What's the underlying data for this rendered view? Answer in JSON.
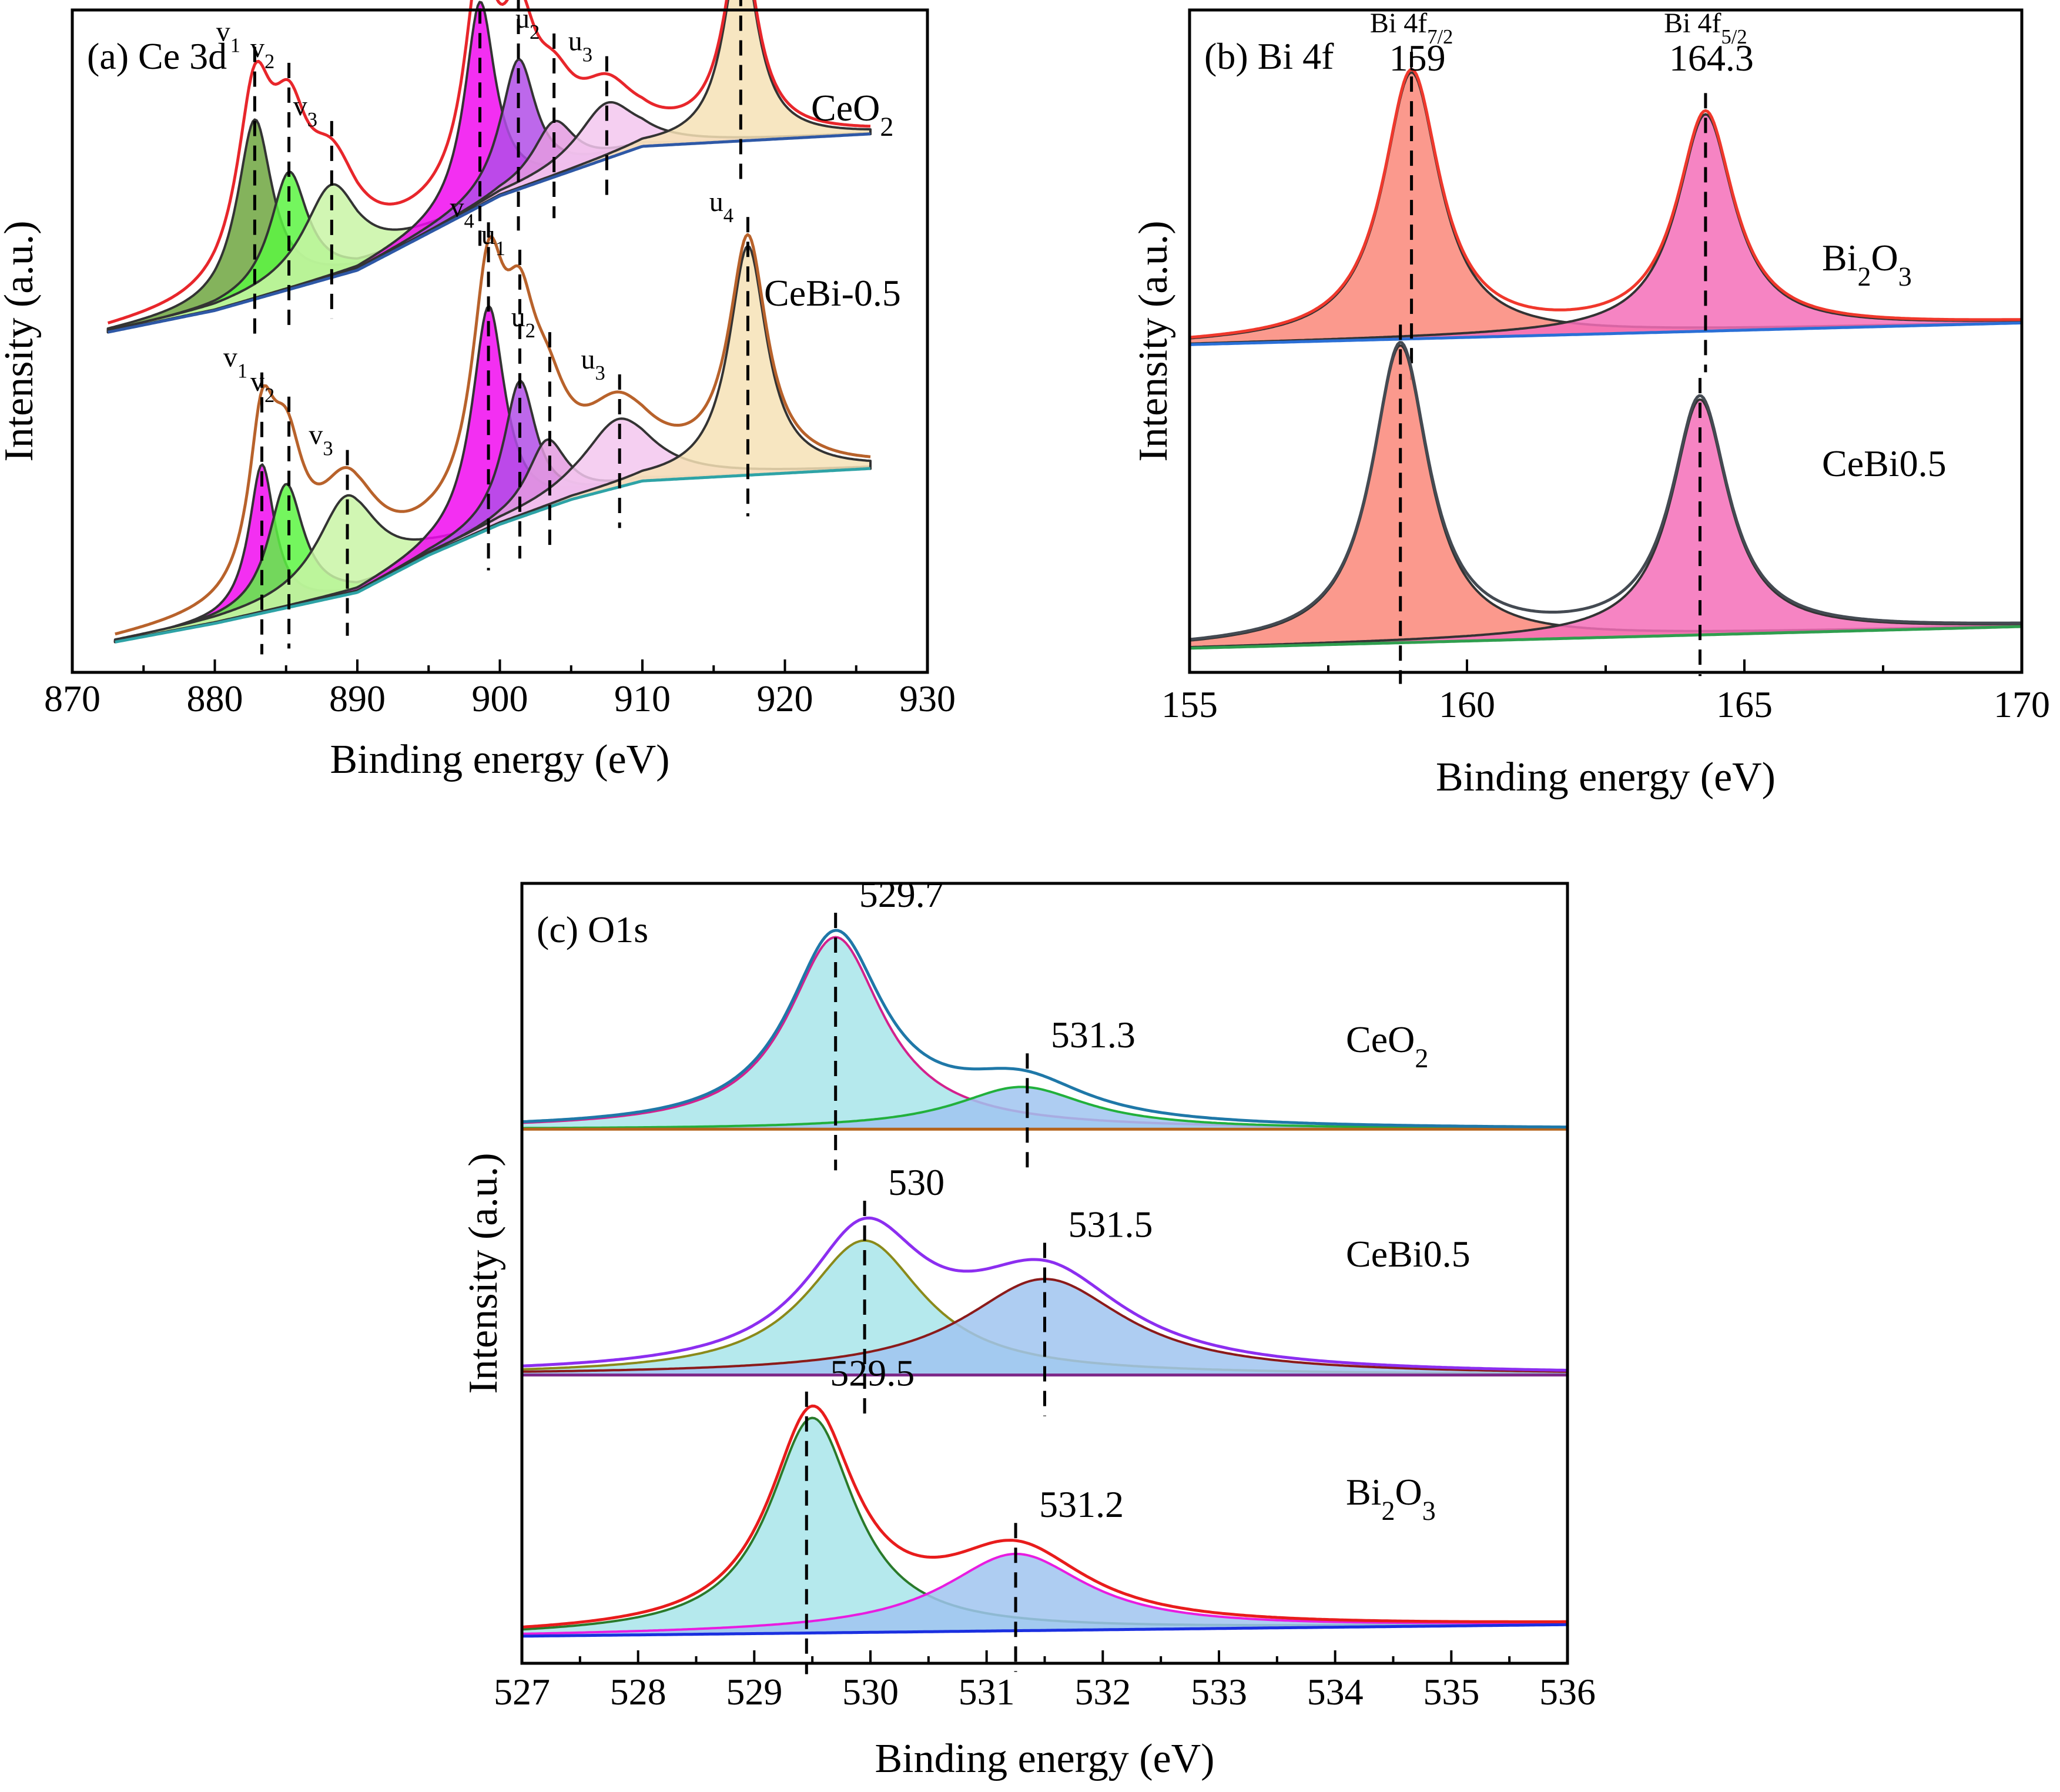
{
  "chart_data": [
    {
      "type": "line",
      "panel": "a",
      "title": "(a)  Ce 3d",
      "xlabel": "Binding energy (eV)",
      "ylabel": "Intensity (a.u.)",
      "xlim": [
        870,
        930
      ],
      "ylim": [
        0,
        10
      ],
      "xticks": [
        870,
        880,
        890,
        900,
        910,
        920,
        930
      ],
      "series": [
        {
          "name": "CeO2",
          "label_text": "CeO",
          "label_sub": "2",
          "offset": 5.3,
          "line_color": "#e8262b",
          "background_color": "#2e58a6",
          "background": [
            [
              872.5,
              0
            ],
            [
              880,
              0.35
            ],
            [
              890,
              1.0
            ],
            [
              895,
              1.6
            ],
            [
              900,
              2.2
            ],
            [
              905,
              2.6
            ],
            [
              910,
              3.0
            ],
            [
              926,
              3.2
            ]
          ],
          "peaks": [
            {
              "label": "v1",
              "center": 882.8,
              "height": 2.9,
              "width": 1.5,
              "fill": "#6fa640"
            },
            {
              "label": "v2",
              "center": 885.2,
              "height": 1.9,
              "width": 1.6,
              "fill": "#5cf542"
            },
            {
              "label": "v3",
              "center": 888.2,
              "height": 1.5,
              "width": 2.4,
              "fill": "#c9f5a6"
            },
            {
              "label": "v4",
              "center": 898.6,
              "height": 3.3,
              "width": 1.3,
              "fill": "#f10bf0"
            },
            {
              "label": "u1",
              "center": 901.3,
              "height": 2.1,
              "width": 1.5,
              "fill": "#b24de8"
            },
            {
              "label": "u2",
              "center": 903.8,
              "height": 0.9,
              "width": 1.8,
              "fill": "#e49be0"
            },
            {
              "label": "u3",
              "center": 907.5,
              "height": 0.9,
              "width": 2.5,
              "fill": "#f3c7ef"
            },
            {
              "label": "u4",
              "center": 916.9,
              "height": 3.2,
              "width": 1.4,
              "fill": "#f6e2b6"
            }
          ],
          "markers": [
            882.8,
            885.2,
            888.2,
            898.6,
            901.3,
            903.8,
            907.5,
            916.9
          ]
        },
        {
          "name": "CeBi-0.5",
          "label_text": "CeBi-0.5",
          "label_sub": "",
          "offset": 0.3,
          "line_color": "#b8622b",
          "background_color": "#2ea3a6",
          "background": [
            [
              873,
              0
            ],
            [
              880,
              0.3
            ],
            [
              890,
              0.8
            ],
            [
              895,
              1.4
            ],
            [
              900,
              1.9
            ],
            [
              905,
              2.3
            ],
            [
              910,
              2.6
            ],
            [
              926,
              2.8
            ]
          ],
          "peaks": [
            {
              "label": "v1",
              "center": 883.3,
              "height": 2.4,
              "width": 1.1,
              "fill": "#f10bf0"
            },
            {
              "label": "v2",
              "center": 885.0,
              "height": 2.0,
              "width": 1.5,
              "fill": "#5cf542"
            },
            {
              "label": "v3",
              "center": 889.3,
              "height": 1.6,
              "width": 2.6,
              "fill": "#c9f5a6"
            },
            {
              "label": "v4",
              "center": 899.2,
              "height": 3.6,
              "width": 1.4,
              "fill": "#f10bf0"
            },
            {
              "label": "u1",
              "center": 901.4,
              "height": 2.2,
              "width": 1.4,
              "fill": "#b24de8"
            },
            {
              "label": "u2",
              "center": 903.3,
              "height": 1.1,
              "width": 1.7,
              "fill": "#e49be0"
            },
            {
              "label": "u3",
              "center": 908.3,
              "height": 1.1,
              "width": 3.0,
              "fill": "#f3c7ef"
            },
            {
              "label": "u4",
              "center": 917.4,
              "height": 3.7,
              "width": 1.6,
              "fill": "#f6e2b6"
            }
          ],
          "markers": [
            883.3,
            885.2,
            889.3,
            899.2,
            901.4,
            903.5,
            908.4,
            917.4
          ]
        }
      ]
    },
    {
      "type": "line",
      "panel": "b",
      "title": "(b) Bi 4f",
      "xlabel": "Binding energy (eV)",
      "ylabel": "Intensity (a.u.)",
      "xlim": [
        155,
        170
      ],
      "ylim": [
        0,
        10
      ],
      "xticks": [
        155,
        160,
        165,
        170
      ],
      "peak_labels": [
        {
          "line1": "Bi 4f",
          "sub": "7/2",
          "value": "159",
          "x": 159.0
        },
        {
          "line1": "Bi 4f",
          "sub": "5/2",
          "value": "164.3",
          "x": 164.3
        }
      ],
      "series": [
        {
          "name": "Bi2O3",
          "label_text": "Bi",
          "label_sub": "2",
          "label_text2": "O",
          "label_sub2": "3",
          "offset": 5.1,
          "line_color": "#f0382c",
          "background_color": "#2a6fd6",
          "background": [
            [
              155,
              0
            ],
            [
              170,
              0.35
            ]
          ],
          "peaks": [
            {
              "center": 159.0,
              "height": 4.3,
              "width": 0.62,
              "fill": "#fa8779"
            },
            {
              "center": 164.3,
              "height": 3.5,
              "width": 0.62,
              "fill": "#f46eb9"
            }
          ],
          "markers": [
            159.0,
            164.3
          ]
        },
        {
          "name": "CeBi0.5",
          "label_text": "CeBi0.5",
          "label_sub": "",
          "offset": 0.2,
          "line_color": "#444a52",
          "background_color": "#2f9e4e",
          "background": [
            [
              155,
              0
            ],
            [
              170,
              0.35
            ]
          ],
          "peaks": [
            {
              "center": 158.8,
              "height": 4.8,
              "width": 0.62,
              "fill": "#fa8779"
            },
            {
              "center": 164.2,
              "height": 3.8,
              "width": 0.62,
              "fill": "#f46eb9"
            }
          ],
          "markers": [
            158.8,
            164.2
          ]
        }
      ]
    },
    {
      "type": "line",
      "panel": "c",
      "title": "(c) O1s",
      "xlabel": "Binding energy (eV)",
      "ylabel": "Intensity (a.u.)",
      "xlim": [
        527,
        536
      ],
      "ylim": [
        0,
        10
      ],
      "xticks": [
        527,
        528,
        529,
        530,
        531,
        532,
        533,
        534,
        535,
        536
      ],
      "series": [
        {
          "name": "CeO2",
          "label_text": "CeO",
          "label_sub": "2",
          "offset": 6.8,
          "line_color": "#1f78a8",
          "background_color": "#b5651d",
          "background": [
            [
              527,
              0
            ],
            [
              536,
              0
            ]
          ],
          "peaks": [
            {
              "center": 529.7,
              "height": 2.5,
              "width": 0.5,
              "fill": "#a8e5ea",
              "stroke": "#d3218e"
            },
            {
              "center": 531.3,
              "height": 0.55,
              "width": 0.7,
              "fill": "#a0c4f0",
              "stroke": "#22b03c"
            }
          ],
          "markers": [
            529.7,
            531.35
          ],
          "value_labels": [
            {
              "text": "529.7",
              "x": 529.7
            },
            {
              "text": "531.3",
              "x": 531.35
            }
          ]
        },
        {
          "name": "CeBi0.5",
          "label_text": "CeBi0.5",
          "label_sub": "",
          "offset": 3.6,
          "line_color": "#8c2ef0",
          "background_color": "#7e2a8a",
          "background": [
            [
              527,
              0
            ],
            [
              536,
              0
            ]
          ],
          "peaks": [
            {
              "center": 529.95,
              "height": 1.75,
              "width": 0.62,
              "fill": "#a8e5ea",
              "stroke": "#8a8a1a"
            },
            {
              "center": 531.5,
              "height": 1.25,
              "width": 0.85,
              "fill": "#a0c4f0",
              "stroke": "#8b1a1a"
            }
          ],
          "markers": [
            529.95,
            531.5
          ],
          "value_labels": [
            {
              "text": "530",
              "x": 529.95
            },
            {
              "text": "531.5",
              "x": 531.5
            }
          ]
        },
        {
          "name": "Bi2O3",
          "label_text": "Bi",
          "label_sub": "2",
          "label_text2": "O",
          "label_sub2": "3",
          "offset": 0.2,
          "line_color": "#e81c1c",
          "background_color": "#1a2fe0",
          "background": [
            [
              527,
              0
            ],
            [
              536,
              0.15
            ]
          ],
          "peaks": [
            {
              "center": 529.5,
              "height": 2.8,
              "width": 0.45,
              "fill": "#a8e5ea",
              "stroke": "#2a7a2a"
            },
            {
              "center": 531.25,
              "height": 1.0,
              "width": 0.75,
              "fill": "#a0c4f0",
              "stroke": "#e81ce0"
            }
          ],
          "markers": [
            529.45,
            531.25
          ],
          "value_labels": [
            {
              "text": "529.5",
              "x": 529.45
            },
            {
              "text": "531.2",
              "x": 531.25
            }
          ]
        }
      ]
    }
  ]
}
